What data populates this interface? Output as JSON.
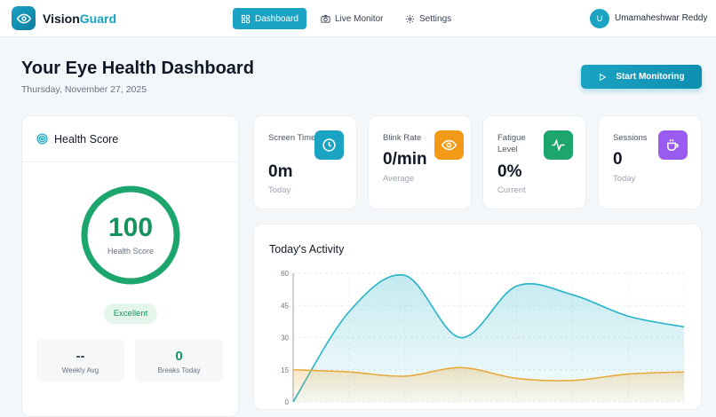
{
  "header": {
    "brand_part1": "Vision",
    "brand_part2": "Guard",
    "nav": [
      {
        "label": "Dashboard",
        "icon": "dashboard-icon",
        "active": true
      },
      {
        "label": "Live Monitor",
        "icon": "camera-icon",
        "active": false
      },
      {
        "label": "Settings",
        "icon": "gear-icon",
        "active": false
      }
    ],
    "user_initial": "U",
    "user_name": "Umamaheshwar Reddy"
  },
  "page": {
    "title": "Your Eye Health Dashboard",
    "date": "Thursday, November 27, 2025",
    "start_button": "Start Monitoring"
  },
  "health": {
    "title": "Health Score",
    "score": "100",
    "score_label": "Health Score",
    "score_fraction": 1.0,
    "badge": "Excellent",
    "weekly_avg_value": "--",
    "weekly_avg_label": "Weekly Avg",
    "breaks_value": "0",
    "breaks_label": "Breaks Today"
  },
  "stats": [
    {
      "label": "Screen Time",
      "value": "0m",
      "sub": "Today",
      "icon": "clock-icon",
      "color": "#1aa3c3"
    },
    {
      "label": "Blink Rate",
      "value": "0/min",
      "sub": "Average",
      "icon": "eye-icon",
      "color": "#f29a17"
    },
    {
      "label": "Fatigue Level",
      "value": "0%",
      "sub": "Current",
      "icon": "pulse-icon",
      "color": "#1ca66e"
    },
    {
      "label": "Sessions",
      "value": "0",
      "sub": "Today",
      "icon": "coffee-icon",
      "color": "#9a5cf0"
    }
  ],
  "activity": {
    "title": "Today's Activity"
  },
  "chart_data": {
    "type": "area",
    "y_ticks": [
      "60",
      "45",
      "30",
      "15",
      "0"
    ],
    "ylim": [
      0,
      60
    ],
    "x": [
      0,
      1,
      2,
      3,
      4,
      5,
      6,
      7
    ],
    "series": [
      {
        "values": [
          0,
          42,
          59,
          30,
          54,
          50,
          40,
          35
        ],
        "color": "#27b3c8"
      },
      {
        "values": [
          15,
          14,
          12,
          16,
          11,
          10,
          13,
          14
        ],
        "color": "#e8a93c"
      }
    ],
    "grid": true
  }
}
